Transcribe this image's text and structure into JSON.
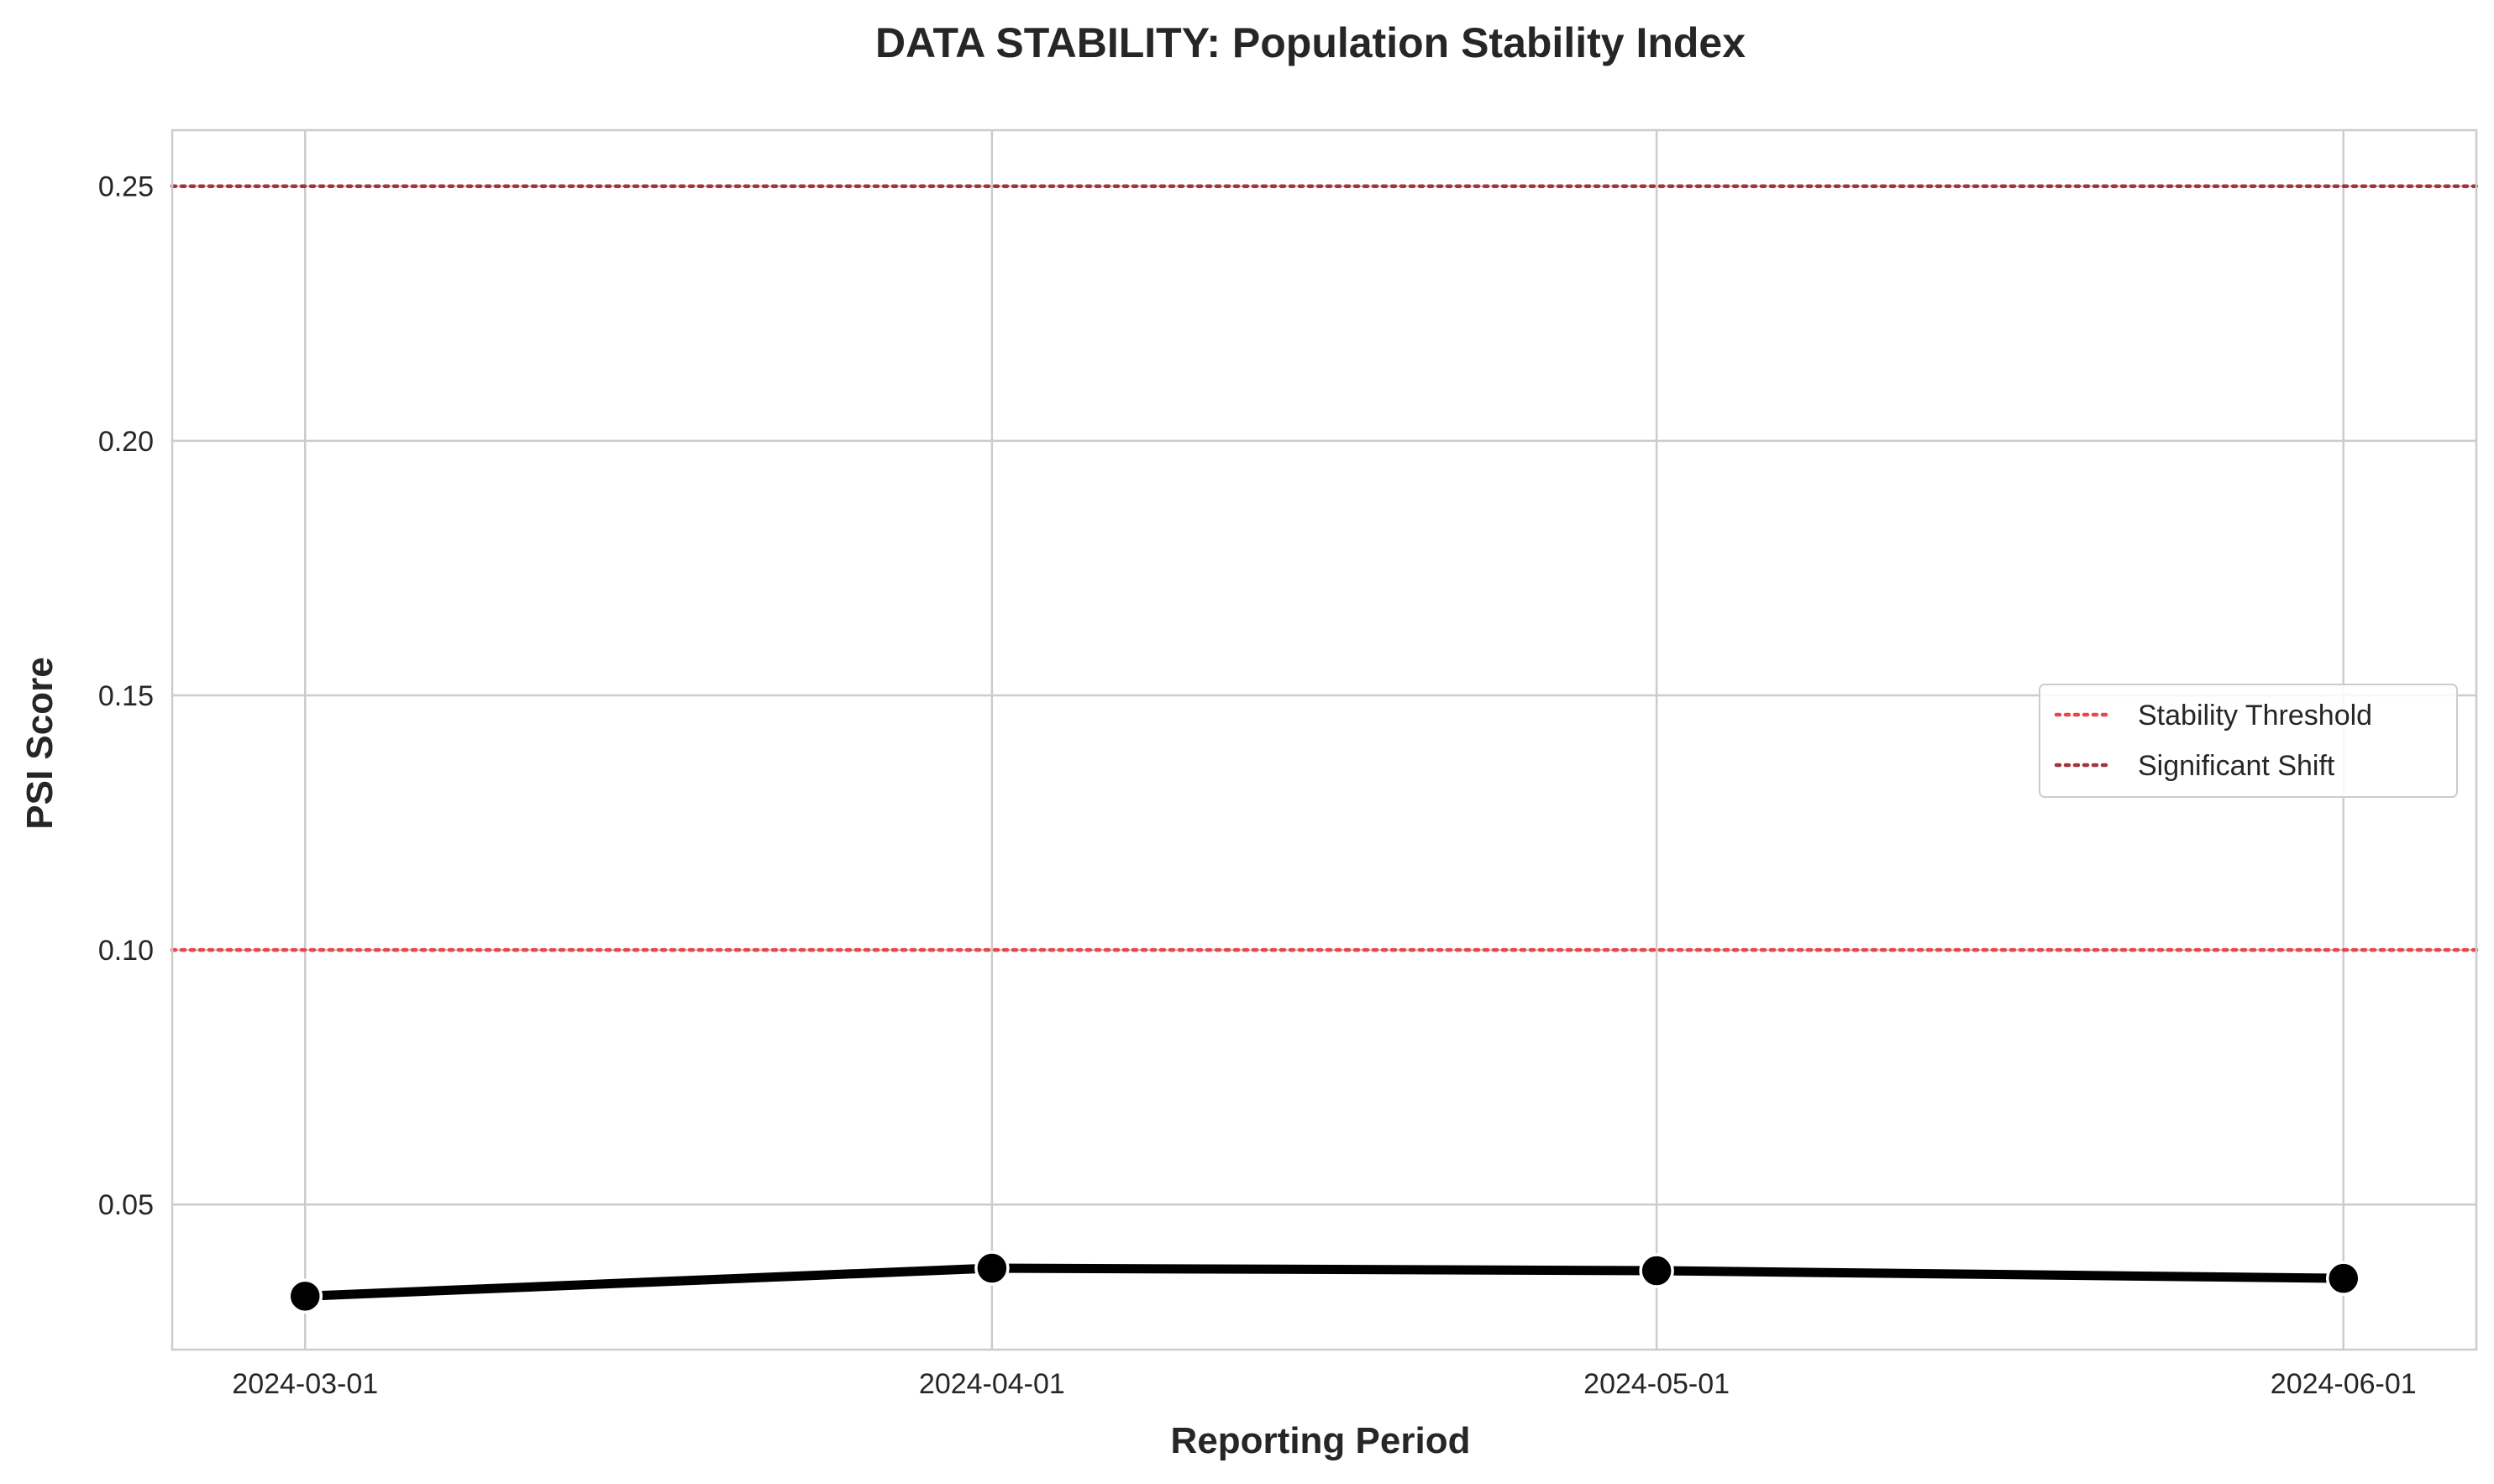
{
  "chart_data": {
    "type": "line",
    "title": "DATA STABILITY: Population Stability Index",
    "xlabel": "Reporting Period",
    "ylabel": "PSI Score",
    "x": [
      "2024-03-01",
      "2024-04-01",
      "2024-05-01",
      "2024-06-01"
    ],
    "x_ticks": [
      "2024-03-01",
      "2024-04-01",
      "2024-05-01",
      "2024-06-01"
    ],
    "series": [
      {
        "values": [
          0.032,
          0.0375,
          0.037,
          0.0355
        ],
        "color": "#000000",
        "marker": "circle"
      }
    ],
    "reference_lines": [
      {
        "name": "Stability Threshold",
        "y": 0.1,
        "color": "#e8474c",
        "style": "dotted"
      },
      {
        "name": "Significant Shift",
        "y": 0.25,
        "color": "#a3343e",
        "style": "dotted"
      }
    ],
    "y_ticks": [
      "0.05",
      "0.10",
      "0.15",
      "0.20",
      "0.25"
    ],
    "xlim": [
      "2024-02-24",
      "2024-06-07"
    ],
    "ylim": [
      0.0215,
      0.261
    ],
    "grid": true,
    "legend_position": "center-right"
  }
}
